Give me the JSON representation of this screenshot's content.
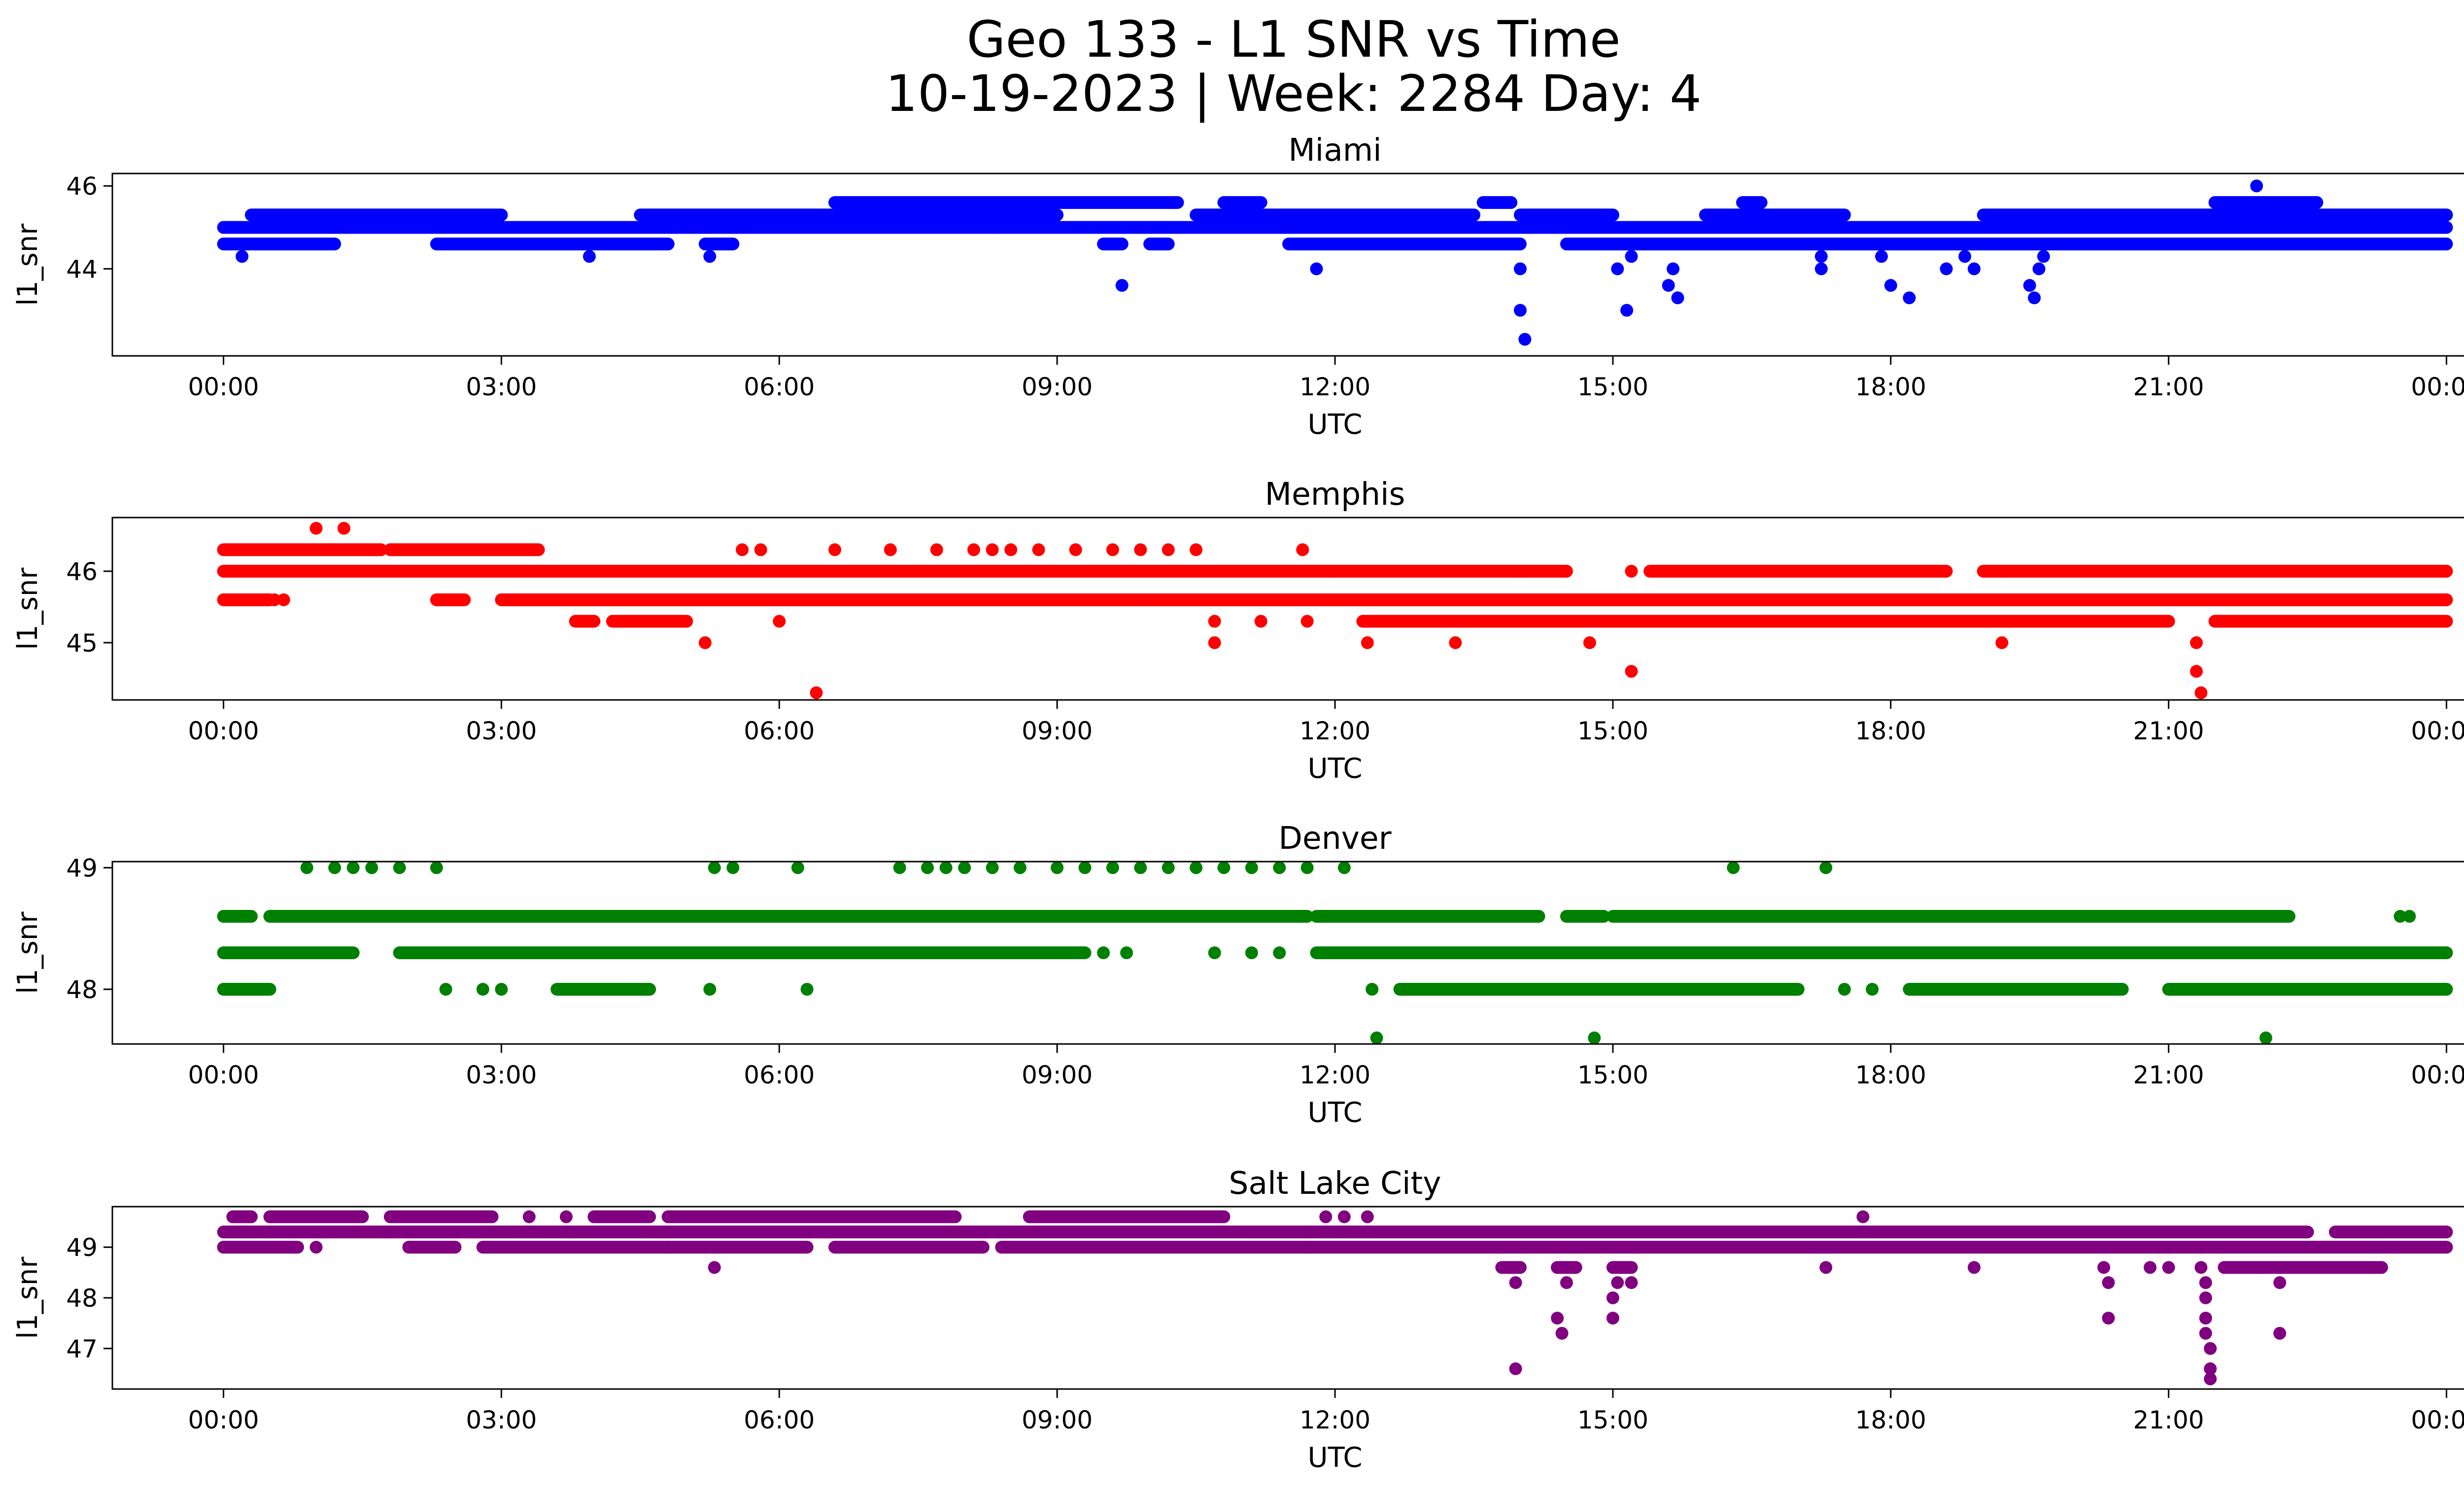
{
  "figure": {
    "title_line1": "Geo 133 - L1 SNR vs Time",
    "title_line2": "10-19-2023 | Week: 2284 Day: 4"
  },
  "chart_data": [
    {
      "type": "scatter",
      "title": "Miami",
      "color": "#0000ff",
      "xlabel": "UTC",
      "ylabel": "l1_snr",
      "xticks": [
        "00:00",
        "03:00",
        "06:00",
        "09:00",
        "12:00",
        "15:00",
        "18:00",
        "21:00",
        "00:00"
      ],
      "xlim_hours": [
        -1.2,
        25.2
      ],
      "ylim": [
        41.9,
        46.3
      ],
      "yticks": [
        44,
        46
      ],
      "bands": [
        {
          "y": 45.0,
          "segments": [
            [
              0.0,
              24.0
            ]
          ]
        },
        {
          "y": 44.6,
          "segments": [
            [
              0.0,
              1.2
            ],
            [
              2.3,
              4.8
            ],
            [
              5.2,
              5.5
            ],
            [
              9.5,
              9.7
            ],
            [
              10.0,
              10.2
            ],
            [
              11.5,
              14.0
            ],
            [
              14.5,
              24.0
            ]
          ]
        },
        {
          "y": 45.3,
          "segments": [
            [
              0.3,
              3.0
            ],
            [
              4.5,
              9.0
            ],
            [
              10.5,
              13.5
            ],
            [
              14.0,
              15.0
            ],
            [
              16.0,
              17.5
            ],
            [
              19.0,
              24.0
            ]
          ]
        },
        {
          "y": 45.6,
          "segments": [
            [
              6.6,
              10.3
            ],
            [
              10.8,
              11.2
            ],
            [
              13.6,
              13.9
            ],
            [
              16.4,
              16.6
            ],
            [
              21.5,
              22.6
            ]
          ]
        }
      ],
      "outliers": [
        {
          "x": 0.2,
          "y": 44.3
        },
        {
          "x": 3.95,
          "y": 44.3
        },
        {
          "x": 5.25,
          "y": 44.3
        },
        {
          "x": 8.3,
          "y": 45.0
        },
        {
          "x": 9.7,
          "y": 43.6
        },
        {
          "x": 11.8,
          "y": 44.0
        },
        {
          "x": 14.0,
          "y": 44.0
        },
        {
          "x": 14.0,
          "y": 43.0
        },
        {
          "x": 14.05,
          "y": 42.3
        },
        {
          "x": 15.05,
          "y": 44.0
        },
        {
          "x": 15.15,
          "y": 43.0
        },
        {
          "x": 15.6,
          "y": 43.6
        },
        {
          "x": 15.65,
          "y": 44.0
        },
        {
          "x": 15.7,
          "y": 43.3
        },
        {
          "x": 15.2,
          "y": 44.3
        },
        {
          "x": 17.25,
          "y": 44.0
        },
        {
          "x": 17.25,
          "y": 44.3
        },
        {
          "x": 17.9,
          "y": 44.3
        },
        {
          "x": 18.0,
          "y": 43.6
        },
        {
          "x": 18.2,
          "y": 43.3
        },
        {
          "x": 18.6,
          "y": 44.0
        },
        {
          "x": 18.8,
          "y": 44.3
        },
        {
          "x": 18.9,
          "y": 44.0
        },
        {
          "x": 19.5,
          "y": 43.6
        },
        {
          "x": 19.55,
          "y": 43.3
        },
        {
          "x": 19.6,
          "y": 44.0
        },
        {
          "x": 19.65,
          "y": 44.3
        },
        {
          "x": 21.95,
          "y": 46.0
        },
        {
          "x": 22.6,
          "y": 44.6
        }
      ]
    },
    {
      "type": "scatter",
      "title": "Memphis",
      "color": "#ff0000",
      "xlabel": "UTC",
      "ylabel": "l1_snr",
      "xticks": [
        "00:00",
        "03:00",
        "06:00",
        "09:00",
        "12:00",
        "15:00",
        "18:00",
        "21:00",
        "00:00"
      ],
      "xlim_hours": [
        -1.2,
        25.2
      ],
      "ylim": [
        44.2,
        46.75
      ],
      "yticks": [
        45,
        46
      ],
      "bands": [
        {
          "y": 46.3,
          "segments": [
            [
              0.0,
              1.7
            ],
            [
              1.8,
              3.4
            ]
          ]
        },
        {
          "y": 46.0,
          "segments": [
            [
              0.0,
              12.0
            ],
            [
              12.0,
              14.0
            ],
            [
              14.0,
              14.5
            ],
            [
              15.4,
              18.6
            ],
            [
              19.0,
              24.0
            ]
          ]
        },
        {
          "y": 45.6,
          "segments": [
            [
              0.0,
              0.5
            ],
            [
              2.3,
              2.6
            ],
            [
              3.0,
              10.0
            ],
            [
              10.0,
              24.0
            ]
          ]
        },
        {
          "y": 45.3,
          "segments": [
            [
              3.8,
              4.0
            ],
            [
              4.2,
              5.0
            ],
            [
              12.3,
              21.0
            ],
            [
              21.5,
              24.0
            ]
          ]
        }
      ],
      "outliers": [
        {
          "x": 0.55,
          "y": 45.6
        },
        {
          "x": 0.65,
          "y": 45.6
        },
        {
          "x": 1.0,
          "y": 46.6
        },
        {
          "x": 1.3,
          "y": 46.6
        },
        {
          "x": 5.2,
          "y": 45.0
        },
        {
          "x": 5.6,
          "y": 46.3
        },
        {
          "x": 5.8,
          "y": 46.3
        },
        {
          "x": 6.0,
          "y": 45.3
        },
        {
          "x": 6.4,
          "y": 44.3
        },
        {
          "x": 6.6,
          "y": 46.3
        },
        {
          "x": 7.2,
          "y": 46.3
        },
        {
          "x": 7.7,
          "y": 46.3
        },
        {
          "x": 8.1,
          "y": 46.3
        },
        {
          "x": 8.3,
          "y": 46.3
        },
        {
          "x": 8.5,
          "y": 46.3
        },
        {
          "x": 8.8,
          "y": 46.3
        },
        {
          "x": 9.2,
          "y": 46.3
        },
        {
          "x": 9.6,
          "y": 46.3
        },
        {
          "x": 9.9,
          "y": 46.3
        },
        {
          "x": 10.2,
          "y": 46.3
        },
        {
          "x": 10.5,
          "y": 46.3
        },
        {
          "x": 10.7,
          "y": 45.0
        },
        {
          "x": 10.7,
          "y": 45.3
        },
        {
          "x": 11.2,
          "y": 45.3
        },
        {
          "x": 11.65,
          "y": 46.3
        },
        {
          "x": 11.7,
          "y": 45.3
        },
        {
          "x": 12.35,
          "y": 45.0
        },
        {
          "x": 13.3,
          "y": 45.0
        },
        {
          "x": 14.75,
          "y": 45.0
        },
        {
          "x": 15.2,
          "y": 44.6
        },
        {
          "x": 15.2,
          "y": 46.0
        },
        {
          "x": 19.2,
          "y": 45.0
        },
        {
          "x": 19.2,
          "y": 46.0
        },
        {
          "x": 21.3,
          "y": 45.0
        },
        {
          "x": 21.3,
          "y": 44.6
        },
        {
          "x": 21.35,
          "y": 44.3
        }
      ]
    },
    {
      "type": "scatter",
      "title": "Denver",
      "color": "#008000",
      "xlabel": "UTC",
      "ylabel": "l1_snr",
      "xticks": [
        "00:00",
        "03:00",
        "06:00",
        "09:00",
        "12:00",
        "15:00",
        "18:00",
        "21:00",
        "00:00"
      ],
      "xlim_hours": [
        -1.2,
        25.2
      ],
      "ylim": [
        47.55,
        49.05
      ],
      "yticks": [
        48,
        49
      ],
      "bands": [
        {
          "y": 48.6,
          "segments": [
            [
              0.0,
              0.3
            ],
            [
              0.5,
              11.7
            ],
            [
              11.8,
              14.2
            ],
            [
              14.5,
              14.9
            ],
            [
              15.0,
              22.3
            ]
          ]
        },
        {
          "y": 48.3,
          "segments": [
            [
              0.0,
              1.4
            ],
            [
              1.9,
              9.3
            ],
            [
              11.8,
              24.0
            ]
          ]
        },
        {
          "y": 48.0,
          "segments": [
            [
              0.0,
              0.5
            ],
            [
              3.6,
              4.6
            ],
            [
              12.7,
              15.5
            ],
            [
              15.5,
              17.0
            ],
            [
              18.2,
              20.5
            ],
            [
              21.0,
              24.0
            ]
          ]
        }
      ],
      "outliers": [
        {
          "x": 0.9,
          "y": 49.0
        },
        {
          "x": 1.2,
          "y": 49.0
        },
        {
          "x": 1.4,
          "y": 49.0
        },
        {
          "x": 1.6,
          "y": 49.0
        },
        {
          "x": 1.9,
          "y": 49.0
        },
        {
          "x": 2.3,
          "y": 49.0
        },
        {
          "x": 5.3,
          "y": 49.0
        },
        {
          "x": 5.5,
          "y": 49.0
        },
        {
          "x": 6.2,
          "y": 49.0
        },
        {
          "x": 7.3,
          "y": 49.0
        },
        {
          "x": 7.6,
          "y": 49.0
        },
        {
          "x": 7.8,
          "y": 49.0
        },
        {
          "x": 8.0,
          "y": 49.0
        },
        {
          "x": 8.3,
          "y": 49.0
        },
        {
          "x": 8.6,
          "y": 49.0
        },
        {
          "x": 9.0,
          "y": 49.0
        },
        {
          "x": 9.3,
          "y": 49.0
        },
        {
          "x": 9.6,
          "y": 49.0
        },
        {
          "x": 9.9,
          "y": 49.0
        },
        {
          "x": 10.2,
          "y": 49.0
        },
        {
          "x": 10.5,
          "y": 49.0
        },
        {
          "x": 10.8,
          "y": 49.0
        },
        {
          "x": 11.1,
          "y": 49.0
        },
        {
          "x": 11.4,
          "y": 49.0
        },
        {
          "x": 11.7,
          "y": 49.0
        },
        {
          "x": 12.1,
          "y": 49.0
        },
        {
          "x": 16.3,
          "y": 49.0
        },
        {
          "x": 17.3,
          "y": 49.0
        },
        {
          "x": 9.5,
          "y": 48.3
        },
        {
          "x": 9.75,
          "y": 48.3
        },
        {
          "x": 10.7,
          "y": 48.3
        },
        {
          "x": 11.1,
          "y": 48.3
        },
        {
          "x": 11.4,
          "y": 48.3
        },
        {
          "x": 2.4,
          "y": 48.0
        },
        {
          "x": 2.8,
          "y": 48.0
        },
        {
          "x": 3.0,
          "y": 48.0
        },
        {
          "x": 5.25,
          "y": 48.0
        },
        {
          "x": 6.3,
          "y": 48.0
        },
        {
          "x": 12.4,
          "y": 48.0
        },
        {
          "x": 12.45,
          "y": 47.6
        },
        {
          "x": 14.8,
          "y": 47.6
        },
        {
          "x": 17.5,
          "y": 48.0
        },
        {
          "x": 17.8,
          "y": 48.0
        },
        {
          "x": 22.05,
          "y": 47.6
        },
        {
          "x": 23.5,
          "y": 48.6
        },
        {
          "x": 23.6,
          "y": 48.6
        }
      ]
    },
    {
      "type": "scatter",
      "title": "Salt Lake City",
      "color": "#800080",
      "xlabel": "UTC",
      "ylabel": "l1_snr",
      "xticks": [
        "00:00",
        "03:00",
        "06:00",
        "09:00",
        "12:00",
        "15:00",
        "18:00",
        "21:00",
        "00:00"
      ],
      "xlim_hours": [
        -1.2,
        25.2
      ],
      "ylim": [
        46.2,
        49.8
      ],
      "yticks": [
        47,
        48,
        49
      ],
      "bands": [
        {
          "y": 49.6,
          "segments": [
            [
              0.1,
              0.3
            ],
            [
              0.5,
              1.5
            ],
            [
              1.8,
              2.9
            ],
            [
              4.0,
              4.6
            ],
            [
              4.8,
              7.9
            ],
            [
              8.7,
              10.8
            ]
          ]
        },
        {
          "y": 49.3,
          "segments": [
            [
              0.0,
              1.8
            ],
            [
              1.8,
              11.7
            ],
            [
              11.7,
              22.5
            ],
            [
              22.8,
              24.0
            ]
          ]
        },
        {
          "y": 49.0,
          "segments": [
            [
              0.0,
              0.8
            ],
            [
              2.0,
              2.5
            ],
            [
              2.8,
              4.8
            ],
            [
              4.8,
              6.3
            ],
            [
              6.6,
              8.2
            ],
            [
              8.4,
              11.7
            ],
            [
              11.7,
              24.0
            ]
          ]
        },
        {
          "y": 48.6,
          "segments": [
            [
              13.8,
              14.0
            ],
            [
              14.4,
              14.6
            ],
            [
              15.0,
              15.2
            ],
            [
              21.6,
              23.3
            ]
          ]
        }
      ],
      "outliers": [
        {
          "x": 0.0,
          "y": 49.0
        },
        {
          "x": 1.0,
          "y": 49.0
        },
        {
          "x": 3.3,
          "y": 49.6
        },
        {
          "x": 3.7,
          "y": 49.6
        },
        {
          "x": 5.3,
          "y": 48.6
        },
        {
          "x": 11.9,
          "y": 49.6
        },
        {
          "x": 12.1,
          "y": 49.6
        },
        {
          "x": 12.35,
          "y": 49.6
        },
        {
          "x": 13.9,
          "y": 48.6
        },
        {
          "x": 13.95,
          "y": 48.3
        },
        {
          "x": 13.95,
          "y": 46.6
        },
        {
          "x": 14.4,
          "y": 48.6
        },
        {
          "x": 14.4,
          "y": 47.6
        },
        {
          "x": 14.45,
          "y": 47.3
        },
        {
          "x": 14.5,
          "y": 48.3
        },
        {
          "x": 15.0,
          "y": 48.0
        },
        {
          "x": 15.0,
          "y": 47.6
        },
        {
          "x": 15.05,
          "y": 48.3
        },
        {
          "x": 15.2,
          "y": 48.3
        },
        {
          "x": 17.3,
          "y": 48.6
        },
        {
          "x": 17.7,
          "y": 49.6
        },
        {
          "x": 18.9,
          "y": 48.6
        },
        {
          "x": 20.3,
          "y": 48.6
        },
        {
          "x": 20.35,
          "y": 48.3
        },
        {
          "x": 20.35,
          "y": 47.6
        },
        {
          "x": 20.8,
          "y": 48.6
        },
        {
          "x": 21.0,
          "y": 48.6
        },
        {
          "x": 21.35,
          "y": 48.6
        },
        {
          "x": 21.4,
          "y": 48.3
        },
        {
          "x": 21.4,
          "y": 48.0
        },
        {
          "x": 21.4,
          "y": 47.6
        },
        {
          "x": 21.4,
          "y": 47.3
        },
        {
          "x": 21.45,
          "y": 47.0
        },
        {
          "x": 21.45,
          "y": 46.6
        },
        {
          "x": 21.45,
          "y": 46.4
        },
        {
          "x": 22.2,
          "y": 48.3
        },
        {
          "x": 22.2,
          "y": 47.3
        },
        {
          "x": 22.0,
          "y": 48.6
        }
      ]
    }
  ]
}
